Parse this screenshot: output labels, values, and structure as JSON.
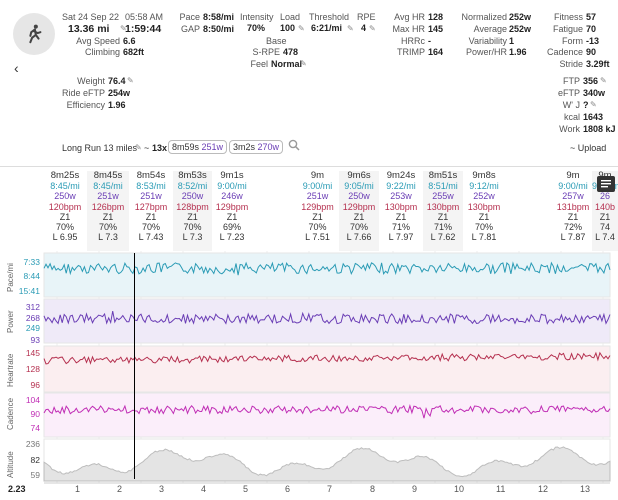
{
  "header": {
    "date": "Sat 24 Sep 22",
    "time": "05:58 AM",
    "distance": "13.36 mi",
    "duration": "1:59:44",
    "avg_speed_label": "Avg Speed",
    "avg_speed": "6.6",
    "climbing_label": "Climbing",
    "climbing": "682ft",
    "pace_label": "Pace",
    "pace": "8:58/mi",
    "gap_label": "GAP",
    "gap": "8:50/mi",
    "intensity_label": "Intensity",
    "intensity": "70%",
    "load_label": "Load",
    "load": "100",
    "threshold_label": "Threshold",
    "threshold": "6:21/mi",
    "rpe_label": "RPE",
    "rpe": "4",
    "base_label": "Base",
    "srpe_label": "S-RPE",
    "srpe": "478",
    "feel_label": "Feel",
    "feel": "Normal",
    "avghr_label": "Avg HR",
    "avghr": "128",
    "maxhr_label": "Max HR",
    "maxhr": "145",
    "hrrc_label": "HRRc",
    "hrrc": "-",
    "trimp_label": "TRIMP",
    "trimp": "164",
    "normalized_label": "Normalized",
    "normalized": "252w",
    "average_label": "Average",
    "average": "252w",
    "variability_label": "Variability",
    "variability": "1",
    "powerhr_label": "Power/HR",
    "powerhr": "1.96",
    "fitness_label": "Fitness",
    "fitness": "57",
    "fatigue_label": "Fatigue",
    "fatigue": "70",
    "form_label": "Form",
    "form": "-13",
    "cadence_label": "Cadence",
    "cadence": "90",
    "stride_label": "Stride",
    "stride": "3.29ft",
    "weight_label": "Weight",
    "weight": "76.4",
    "ride_eftp_label": "Ride eFTP",
    "ride_eftp": "254w",
    "efficiency_label": "Efficiency",
    "efficiency": "1.96",
    "ftp_label": "FTP",
    "ftp": "356",
    "eftp_label": "eFTP",
    "eftp": "340w",
    "wj_label": "W' J",
    "wj": "?",
    "kcal_label": "kcal",
    "kcal": "1643",
    "work_label": "Work",
    "work": "1808 kJ"
  },
  "workout": {
    "title": "Long Run 13 miles",
    "tilde": "~",
    "reps": "13x",
    "chip1_pace": "8m59s",
    "chip1_power": "251w",
    "chip2_pace": "3m2s",
    "chip2_power": "270w",
    "upload": "~ Upload"
  },
  "intervals": [
    {
      "t": "8m25s",
      "p": "8:45/mi",
      "w": "250w",
      "hr": "120bpm",
      "z": "Z1",
      "pct": "70%",
      "l": "L 6.95"
    },
    {
      "t": "8m45s",
      "p": "8:45/mi",
      "w": "251w",
      "hr": "126bpm",
      "z": "Z1",
      "pct": "70%",
      "l": "L 7.3"
    },
    {
      "t": "8m54s",
      "p": "8:53/mi",
      "w": "251w",
      "hr": "127bpm",
      "z": "Z1",
      "pct": "70%",
      "l": "L 7.43"
    },
    {
      "t": "8m53s",
      "p": "8:52/mi",
      "w": "250w",
      "hr": "128bpm",
      "z": "Z1",
      "pct": "70%",
      "l": "L 7.3"
    },
    {
      "t": "9m1s",
      "p": "9:00/mi",
      "w": "246w",
      "hr": "129bpm",
      "z": "Z1",
      "pct": "69%",
      "l": "L 7.23"
    },
    {
      "t": "9m",
      "p": "9:00/mi",
      "w": "251w",
      "hr": "129bpm",
      "z": "Z1",
      "pct": "70%",
      "l": "L 7.51"
    },
    {
      "t": "9m6s",
      "p": "9:05/mi",
      "w": "250w",
      "hr": "129bpm",
      "z": "Z1",
      "pct": "70%",
      "l": "L 7.66"
    },
    {
      "t": "9m24s",
      "p": "9:22/mi",
      "w": "253w",
      "hr": "130bpm",
      "z": "Z1",
      "pct": "71%",
      "l": "L 7.97"
    },
    {
      "t": "8m51s",
      "p": "8:51/mi",
      "w": "255w",
      "hr": "130bpm",
      "z": "Z1",
      "pct": "71%",
      "l": "L 7.62"
    },
    {
      "t": "9m8s",
      "p": "9:12/mi",
      "w": "252w",
      "hr": "130bpm",
      "z": "Z1",
      "pct": "70%",
      "l": "L 7.81"
    },
    {
      "t": "9m",
      "p": "9:00/mi",
      "w": "257w",
      "hr": "131bpm",
      "z": "Z1",
      "pct": "72%",
      "l": "L 7.87"
    },
    {
      "t": "9m",
      "p": "9:00/mi",
      "w": "26",
      "hr": "140b",
      "z": "Z1",
      "pct": "74",
      "l": "L 7.4"
    }
  ],
  "panels": {
    "pace": {
      "label": "Pace/mi",
      "ticks": [
        "7:33",
        "8:44",
        "15:41"
      ]
    },
    "power": {
      "label": "Power",
      "ticks": [
        "312",
        "268",
        "249",
        "93"
      ]
    },
    "heartrate": {
      "label": "Heartrate",
      "ticks": [
        "145",
        "128",
        "96"
      ]
    },
    "cadence": {
      "label": "Cadence",
      "ticks": [
        "104",
        "90",
        "74"
      ]
    },
    "altitude": {
      "label": "Altitude",
      "ticks": [
        "236",
        "82",
        "59"
      ]
    }
  },
  "x_axis": {
    "start": "2.23",
    "ticks": [
      "1",
      "2",
      "3",
      "4",
      "5",
      "6",
      "7",
      "8",
      "9",
      "10",
      "11",
      "12",
      "13"
    ]
  },
  "colors": {
    "pace": "#2a9bb5",
    "power": "#6a3db5",
    "heartrate": "#b5304f",
    "cadence": "#c02db5",
    "altitude": "#bbbbbb"
  }
}
